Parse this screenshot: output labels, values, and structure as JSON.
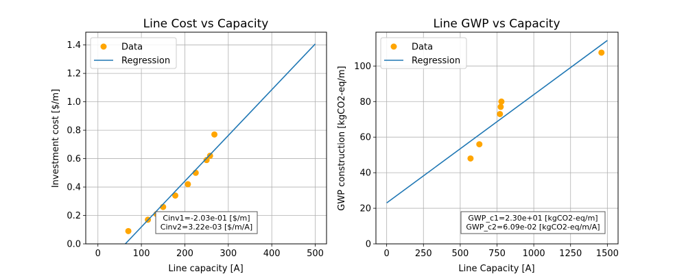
{
  "chart_data": [
    {
      "type": "scatter",
      "title": "Line Cost vs Capacity",
      "xlabel": "Line capacity [A]",
      "ylabel": "Investment cost [$/m]",
      "xlim": [
        -28,
        526
      ],
      "ylim": [
        0,
        1.49
      ],
      "xticks": [
        0,
        100,
        200,
        300,
        400,
        500
      ],
      "yticks": [
        0.0,
        0.2,
        0.4,
        0.6,
        0.8,
        1.0,
        1.2,
        1.4
      ],
      "xtick_labels": [
        "0",
        "100",
        "200",
        "300",
        "400",
        "500"
      ],
      "ytick_labels": [
        "0.0",
        "0.2",
        "0.4",
        "0.6",
        "0.8",
        "1.0",
        "1.2",
        "1.4"
      ],
      "grid": true,
      "legend_position": "top-left",
      "series": [
        {
          "name": "Data",
          "type": "scatter",
          "color": "#ffa500",
          "x": [
            70,
            115,
            135,
            150,
            178,
            207,
            225,
            250,
            258,
            268
          ],
          "y": [
            0.09,
            0.17,
            0.21,
            0.26,
            0.34,
            0.42,
            0.5,
            0.59,
            0.62,
            0.77
          ]
        },
        {
          "name": "Regression",
          "type": "line",
          "color": "#1f77b4",
          "x": [
            63,
            500
          ],
          "y": [
            0.0,
            1.407
          ]
        }
      ],
      "annotation": [
        "Cinv1=-2.03e-01 [$/m]",
        "Cinv2=3.22e-03 [$/m/A]"
      ]
    },
    {
      "type": "scatter",
      "title": "Line GWP vs Capacity",
      "xlabel": "Line Capacity [A]",
      "ylabel": "GWP construction [kgCO2-eq/m]",
      "xlim": [
        -73,
        1573
      ],
      "ylim": [
        0,
        119
      ],
      "xticks": [
        0,
        250,
        500,
        750,
        1000,
        1250,
        1500
      ],
      "yticks": [
        0,
        20,
        40,
        60,
        80,
        100
      ],
      "xtick_labels": [
        "0",
        "250",
        "500",
        "750",
        "1000",
        "1250",
        "1500"
      ],
      "ytick_labels": [
        "0",
        "20",
        "40",
        "60",
        "80",
        "100"
      ],
      "grid": true,
      "legend_position": "top-left",
      "series": [
        {
          "name": "Data",
          "type": "scatter",
          "color": "#ffa500",
          "x": [
            570,
            630,
            770,
            775,
            780,
            1460
          ],
          "y": [
            48,
            56,
            73,
            77,
            80,
            107.5
          ]
        },
        {
          "name": "Regression",
          "type": "line",
          "color": "#1f77b4",
          "x": [
            0,
            1500
          ],
          "y": [
            23.0,
            114.35
          ]
        }
      ],
      "annotation": [
        "GWP_c1=2.30e+01 [kgCO2-eq/m]",
        "GWP_c2=6.09e-02 [kgCO2-eq/m/A]"
      ]
    }
  ]
}
